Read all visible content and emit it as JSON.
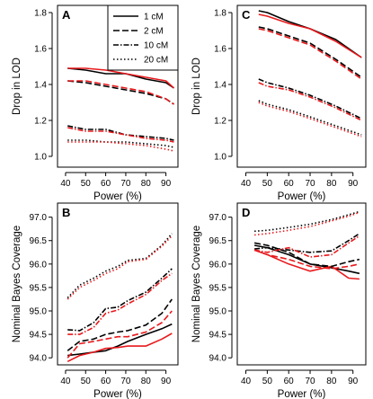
{
  "colors": {
    "black": "#000000",
    "red": "#e8191c"
  },
  "legend": {
    "entries": [
      {
        "label": "1 cM",
        "dash": "solid"
      },
      {
        "label": "2 cM",
        "dash": "dashed"
      },
      {
        "label": "10 cM",
        "dash": "dashdot"
      },
      {
        "label": "20 cM",
        "dash": "dotted"
      }
    ]
  },
  "chart_data": [
    {
      "panel": "A",
      "type": "line",
      "xlabel": "Power (%)",
      "ylabel": "Drop in LOD",
      "xlim": [
        36,
        96
      ],
      "ylim": [
        0.94,
        1.84
      ],
      "xticks": [
        40,
        50,
        60,
        70,
        80,
        90
      ],
      "yticks": [
        1.0,
        1.2,
        1.4,
        1.6,
        1.8
      ],
      "x": [
        41,
        50,
        60,
        70,
        80,
        90,
        94
      ],
      "series": [
        {
          "map": "1 cM",
          "color": "black",
          "values": [
            1.49,
            1.48,
            1.46,
            1.46,
            1.43,
            1.41,
            1.38
          ]
        },
        {
          "map": "1 cM",
          "color": "red",
          "values": [
            1.49,
            1.49,
            1.48,
            1.46,
            1.44,
            1.42,
            1.38
          ]
        },
        {
          "map": "2 cM",
          "color": "black",
          "values": [
            1.42,
            1.41,
            1.39,
            1.37,
            1.35,
            1.32,
            1.29
          ]
        },
        {
          "map": "2 cM",
          "color": "red",
          "values": [
            1.42,
            1.42,
            1.4,
            1.38,
            1.36,
            1.32,
            1.29
          ]
        },
        {
          "map": "10 cM",
          "color": "black",
          "values": [
            1.17,
            1.15,
            1.15,
            1.12,
            1.11,
            1.1,
            1.09
          ]
        },
        {
          "map": "10 cM",
          "color": "red",
          "values": [
            1.16,
            1.14,
            1.14,
            1.12,
            1.1,
            1.09,
            1.08
          ]
        },
        {
          "map": "20 cM",
          "color": "black",
          "values": [
            1.09,
            1.09,
            1.08,
            1.08,
            1.07,
            1.06,
            1.05
          ]
        },
        {
          "map": "20 cM",
          "color": "red",
          "values": [
            1.08,
            1.08,
            1.08,
            1.07,
            1.06,
            1.04,
            1.03
          ]
        }
      ]
    },
    {
      "panel": "C",
      "type": "line",
      "xlabel": "Power (%)",
      "ylabel": "Drop in LOD",
      "xlim": [
        36,
        96
      ],
      "ylim": [
        0.94,
        1.84
      ],
      "xticks": [
        40,
        50,
        60,
        70,
        80,
        90
      ],
      "yticks": [
        1.0,
        1.2,
        1.4,
        1.6,
        1.8
      ],
      "x": [
        46,
        50,
        60,
        70,
        82,
        94
      ],
      "series": [
        {
          "map": "1 cM",
          "color": "black",
          "values": [
            1.81,
            1.8,
            1.75,
            1.71,
            1.65,
            1.55
          ]
        },
        {
          "map": "1 cM",
          "color": "red",
          "values": [
            1.79,
            1.78,
            1.74,
            1.71,
            1.64,
            1.55
          ]
        },
        {
          "map": "2 cM",
          "color": "black",
          "values": [
            1.72,
            1.71,
            1.67,
            1.63,
            1.54,
            1.44
          ]
        },
        {
          "map": "2 cM",
          "color": "red",
          "values": [
            1.71,
            1.7,
            1.66,
            1.62,
            1.53,
            1.43
          ]
        },
        {
          "map": "10 cM",
          "color": "black",
          "values": [
            1.43,
            1.41,
            1.38,
            1.34,
            1.28,
            1.21
          ]
        },
        {
          "map": "10 cM",
          "color": "red",
          "values": [
            1.41,
            1.39,
            1.37,
            1.33,
            1.27,
            1.2
          ]
        },
        {
          "map": "20 cM",
          "color": "black",
          "values": [
            1.31,
            1.29,
            1.26,
            1.22,
            1.17,
            1.12
          ]
        },
        {
          "map": "20 cM",
          "color": "red",
          "values": [
            1.3,
            1.28,
            1.25,
            1.21,
            1.16,
            1.11
          ]
        }
      ]
    },
    {
      "panel": "B",
      "type": "line",
      "xlabel": "Power (%)",
      "ylabel": "Nominal Bayes Coverage",
      "xlim": [
        36,
        96
      ],
      "ylim": [
        93.85,
        97.3
      ],
      "xticks": [
        40,
        50,
        60,
        70,
        80,
        90
      ],
      "yticks": [
        94.0,
        94.5,
        95.0,
        95.5,
        96.0,
        96.5,
        97.0
      ],
      "x": [
        41,
        47,
        54,
        60,
        66,
        71,
        80,
        88,
        93
      ],
      "series": [
        {
          "map": "1 cM",
          "color": "black",
          "values": [
            94.05,
            94.08,
            94.12,
            94.15,
            94.25,
            94.35,
            94.5,
            94.62,
            94.72
          ]
        },
        {
          "map": "1 cM",
          "color": "red",
          "values": [
            93.92,
            94.05,
            94.12,
            94.2,
            94.22,
            94.25,
            94.25,
            94.4,
            94.52
          ]
        },
        {
          "map": "2 cM",
          "color": "black",
          "values": [
            94.15,
            94.35,
            94.4,
            94.5,
            94.55,
            94.58,
            94.7,
            94.95,
            95.25
          ]
        },
        {
          "map": "2 cM",
          "color": "red",
          "values": [
            94.0,
            94.3,
            94.35,
            94.4,
            94.45,
            94.45,
            94.55,
            94.75,
            95.0
          ]
        },
        {
          "map": "10 cM",
          "color": "black",
          "values": [
            94.6,
            94.58,
            94.75,
            95.05,
            95.08,
            95.22,
            95.4,
            95.7,
            95.9
          ]
        },
        {
          "map": "10 cM",
          "color": "red",
          "values": [
            94.5,
            94.5,
            94.65,
            94.95,
            95.02,
            95.15,
            95.35,
            95.65,
            95.8
          ]
        },
        {
          "map": "20 cM",
          "color": "black",
          "values": [
            95.28,
            95.55,
            95.7,
            95.85,
            95.95,
            96.08,
            96.12,
            96.4,
            96.65
          ]
        },
        {
          "map": "20 cM",
          "color": "red",
          "values": [
            95.25,
            95.5,
            95.65,
            95.8,
            95.9,
            96.05,
            96.1,
            96.38,
            96.6
          ]
        }
      ]
    },
    {
      "panel": "D",
      "type": "line",
      "xlabel": "Power (%)",
      "ylabel": "Nominal Bayes Coverage",
      "xlim": [
        36,
        96
      ],
      "ylim": [
        93.85,
        97.3
      ],
      "xticks": [
        40,
        50,
        60,
        70,
        80,
        90
      ],
      "yticks": [
        94.0,
        94.5,
        95.0,
        95.5,
        96.0,
        96.5,
        97.0
      ],
      "x": [
        44,
        50,
        60,
        70,
        80,
        88,
        93
      ],
      "series": [
        {
          "map": "1 cM",
          "color": "black",
          "values": [
            96.4,
            96.35,
            96.2,
            96.0,
            95.92,
            95.85,
            95.8
          ]
        },
        {
          "map": "1 cM",
          "color": "red",
          "values": [
            96.3,
            96.2,
            96.0,
            95.85,
            95.95,
            95.7,
            95.68
          ]
        },
        {
          "map": "2 cM",
          "color": "black",
          "values": [
            96.45,
            96.4,
            96.25,
            96.0,
            95.95,
            96.05,
            96.1
          ]
        },
        {
          "map": "2 cM",
          "color": "red",
          "values": [
            96.3,
            96.2,
            96.1,
            95.95,
            95.9,
            95.95,
            96.0
          ]
        },
        {
          "map": "10 cM",
          "color": "black",
          "values": [
            96.32,
            96.35,
            96.3,
            96.25,
            96.28,
            96.5,
            96.65
          ]
        },
        {
          "map": "10 cM",
          "color": "red",
          "values": [
            96.3,
            96.25,
            96.35,
            96.15,
            96.2,
            96.45,
            96.6
          ]
        },
        {
          "map": "20 cM",
          "color": "black",
          "values": [
            96.7,
            96.72,
            96.78,
            96.85,
            96.95,
            97.05,
            97.12
          ]
        },
        {
          "map": "20 cM",
          "color": "red",
          "values": [
            96.62,
            96.65,
            96.72,
            96.8,
            96.92,
            97.02,
            97.1
          ]
        }
      ]
    }
  ]
}
